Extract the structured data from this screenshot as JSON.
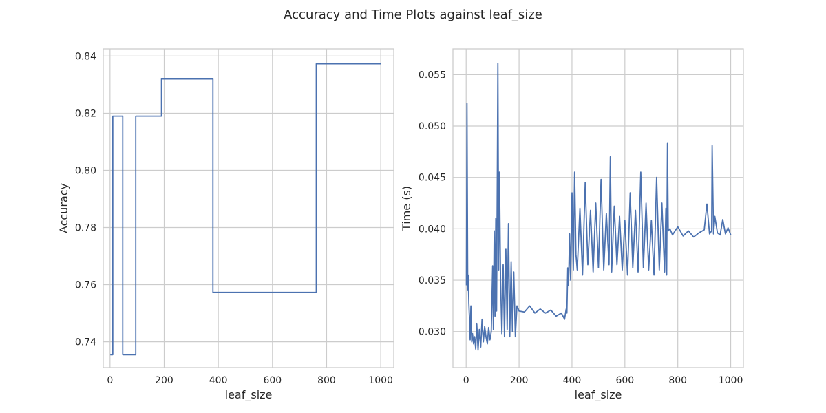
{
  "figure": {
    "title": "Accuracy and Time Plots against leaf_size"
  },
  "colors": {
    "line": "#4c72b0",
    "grid": "#cccccc",
    "spine": "#cccccc",
    "text": "#262626",
    "background": "#ffffff"
  },
  "chart_data": [
    {
      "type": "line",
      "title": "",
      "xlabel": "leaf_size",
      "ylabel": "Accuracy",
      "xlim": [
        -25,
        1048
      ],
      "ylim": [
        0.731,
        0.8425
      ],
      "xticks": [
        0,
        200,
        400,
        600,
        800,
        1000
      ],
      "yticks": [
        0.74,
        0.76,
        0.78,
        0.8,
        0.82,
        0.84
      ],
      "ytick_labels": [
        "0.74",
        "0.76",
        "0.78",
        "0.80",
        "0.82",
        "0.84"
      ],
      "grid": true,
      "legend": "none",
      "series": [
        {
          "x": [
            1,
            10,
            10,
            47,
            47,
            95,
            95,
            190,
            190,
            380,
            380,
            762,
            762,
            1000
          ],
          "y": [
            0.7355,
            0.7355,
            0.819,
            0.819,
            0.7355,
            0.7355,
            0.819,
            0.819,
            0.832,
            0.832,
            0.7573,
            0.7573,
            0.8373,
            0.8373
          ]
        }
      ]
    },
    {
      "type": "line",
      "title": "",
      "xlabel": "leaf_size",
      "ylabel": "Time (s)",
      "xlim": [
        -50,
        1048
      ],
      "ylim": [
        0.0265,
        0.0575
      ],
      "xticks": [
        0,
        200,
        400,
        600,
        800,
        1000
      ],
      "yticks": [
        0.03,
        0.035,
        0.04,
        0.045,
        0.05,
        0.055
      ],
      "ytick_labels": [
        "0.030",
        "0.035",
        "0.040",
        "0.045",
        "0.050",
        "0.055"
      ],
      "grid": true,
      "legend": "none",
      "series": [
        {
          "x": [
            1,
            3,
            6,
            8,
            10,
            13,
            15,
            18,
            21,
            24,
            28,
            32,
            36,
            40,
            45,
            50,
            55,
            60,
            65,
            70,
            75,
            80,
            85,
            90,
            95,
            100,
            103,
            106,
            109,
            112,
            115,
            118,
            120,
            123,
            126,
            130,
            135,
            140,
            145,
            150,
            155,
            160,
            165,
            170,
            175,
            180,
            186,
            192,
            200,
            220,
            240,
            260,
            280,
            300,
            320,
            340,
            360,
            372,
            378,
            381,
            384,
            387,
            391,
            395,
            400,
            405,
            410,
            415,
            420,
            430,
            440,
            450,
            460,
            470,
            480,
            490,
            500,
            510,
            520,
            530,
            540,
            545,
            550,
            560,
            570,
            580,
            590,
            600,
            610,
            620,
            630,
            640,
            650,
            660,
            670,
            680,
            690,
            700,
            710,
            720,
            730,
            740,
            750,
            755,
            758,
            761,
            764,
            770,
            780,
            800,
            820,
            840,
            860,
            880,
            900,
            910,
            920,
            928,
            930,
            935,
            940,
            950,
            960,
            970,
            980,
            990,
            1000
          ],
          "y": [
            0.0345,
            0.0522,
            0.034,
            0.0355,
            0.0328,
            0.031,
            0.0292,
            0.0325,
            0.029,
            0.0298,
            0.0288,
            0.0295,
            0.0283,
            0.0308,
            0.0282,
            0.0302,
            0.0285,
            0.0312,
            0.029,
            0.0305,
            0.0295,
            0.0288,
            0.0304,
            0.0292,
            0.03,
            0.0364,
            0.0302,
            0.0398,
            0.0315,
            0.041,
            0.032,
            0.0465,
            0.0561,
            0.036,
            0.0455,
            0.035,
            0.0298,
            0.0365,
            0.0295,
            0.038,
            0.0302,
            0.0405,
            0.0295,
            0.0368,
            0.03,
            0.0358,
            0.0295,
            0.0325,
            0.032,
            0.0319,
            0.0325,
            0.0318,
            0.0322,
            0.0318,
            0.0321,
            0.0315,
            0.0318,
            0.0312,
            0.0322,
            0.0318,
            0.0362,
            0.0345,
            0.0395,
            0.035,
            0.0435,
            0.036,
            0.0455,
            0.0375,
            0.036,
            0.042,
            0.0355,
            0.0445,
            0.0365,
            0.0418,
            0.0358,
            0.0425,
            0.0362,
            0.0448,
            0.036,
            0.0415,
            0.0365,
            0.047,
            0.0358,
            0.0422,
            0.0365,
            0.0412,
            0.036,
            0.0408,
            0.0355,
            0.0435,
            0.0362,
            0.0418,
            0.0358,
            0.0455,
            0.0362,
            0.0425,
            0.036,
            0.0408,
            0.0355,
            0.045,
            0.036,
            0.0425,
            0.0358,
            0.042,
            0.0355,
            0.0483,
            0.0398,
            0.04,
            0.0394,
            0.0402,
            0.0393,
            0.0398,
            0.0392,
            0.0396,
            0.0399,
            0.0424,
            0.0395,
            0.0398,
            0.0481,
            0.0395,
            0.0412,
            0.0396,
            0.0394,
            0.0409,
            0.0395,
            0.0401,
            0.0394
          ]
        }
      ]
    }
  ]
}
